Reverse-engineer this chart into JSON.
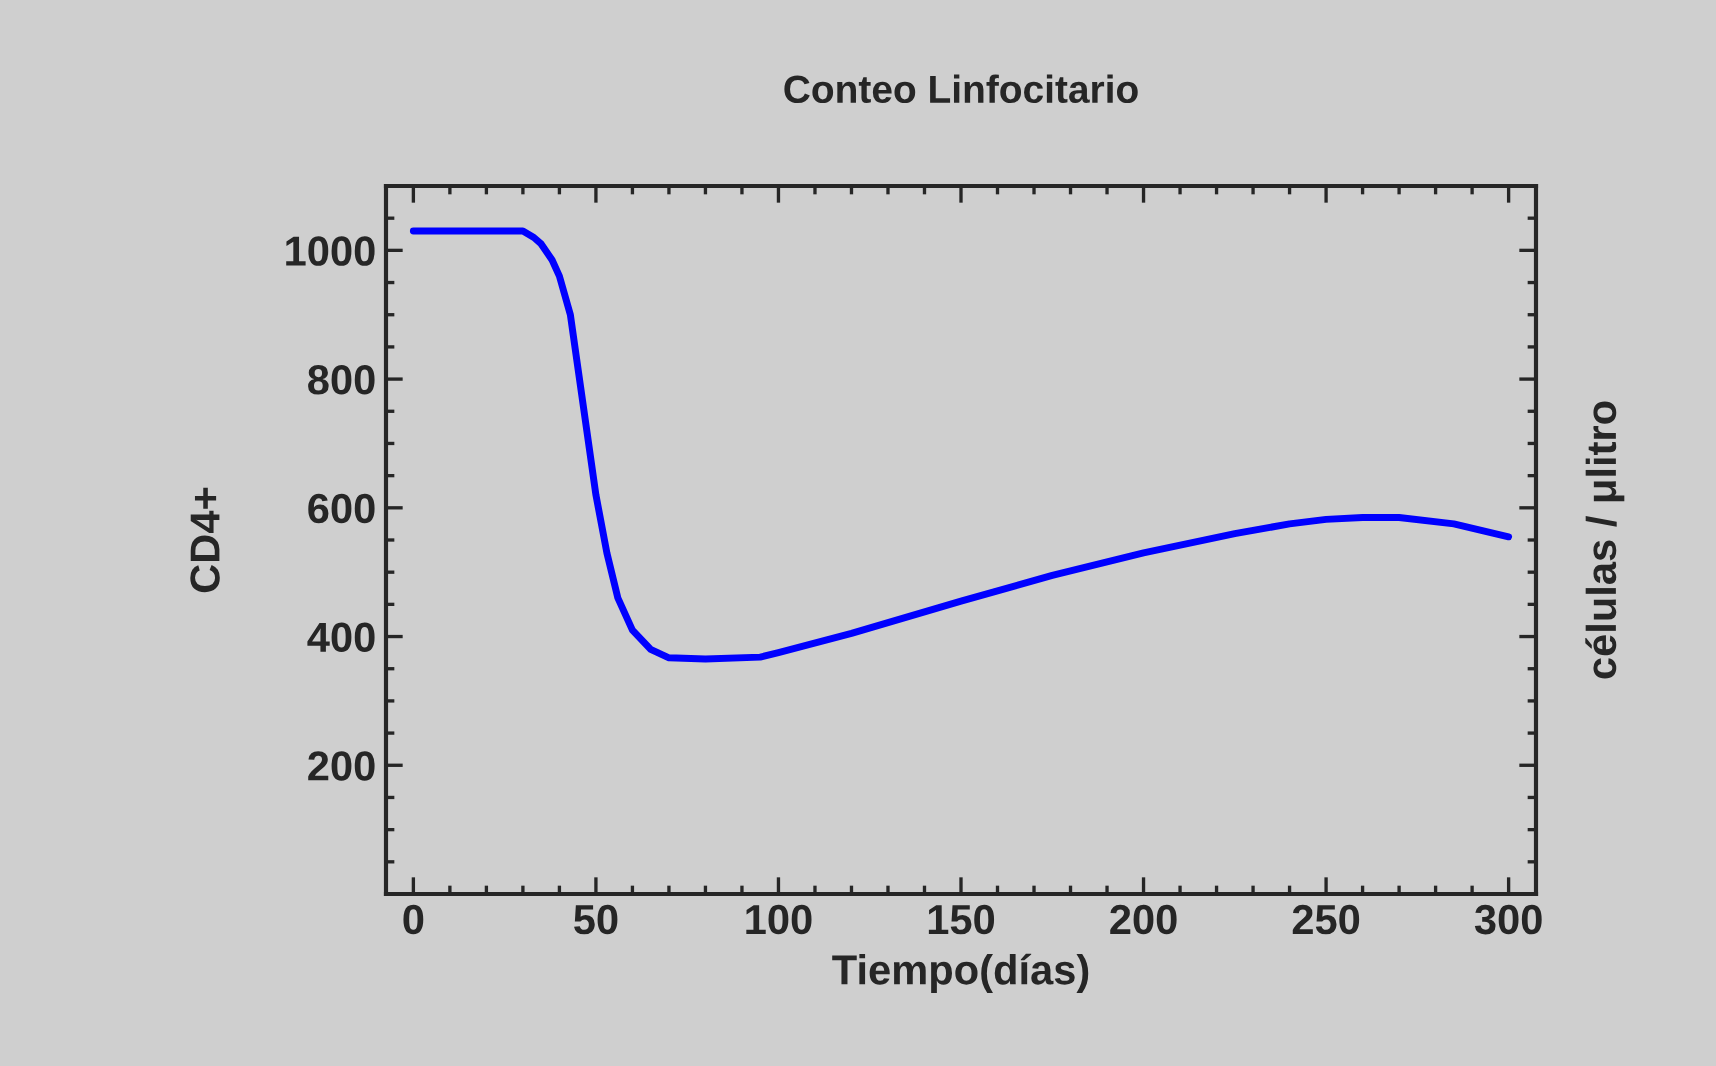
{
  "chart_data": {
    "type": "line",
    "title": "Conteo Linfocitario",
    "xlabel": "Tiempo(días)",
    "ylabel": "CD4+",
    "y2label": "células / μlitro",
    "x": [
      0,
      10,
      20,
      30,
      33,
      35,
      38,
      40,
      43,
      45,
      48,
      50,
      53,
      56,
      60,
      65,
      70,
      80,
      95,
      100,
      120,
      150,
      175,
      200,
      225,
      240,
      250,
      260,
      270,
      285,
      300
    ],
    "series": [
      {
        "color": "#0000ff",
        "values": [
          1030,
          1030,
          1030,
          1030,
          1020,
          1010,
          985,
          960,
          900,
          820,
          700,
          620,
          530,
          460,
          410,
          380,
          367,
          365,
          368,
          375,
          405,
          455,
          495,
          530,
          560,
          575,
          582,
          585,
          585,
          575,
          555
        ]
      }
    ],
    "xlim": [
      -7.5,
      307.5
    ],
    "ylim": [
      0,
      1100
    ],
    "xticks": [
      0,
      50,
      100,
      150,
      200,
      250,
      300
    ],
    "yticks": [
      200,
      400,
      600,
      800,
      1000
    ],
    "legend": false,
    "marker": "none",
    "line_style": "solid"
  }
}
